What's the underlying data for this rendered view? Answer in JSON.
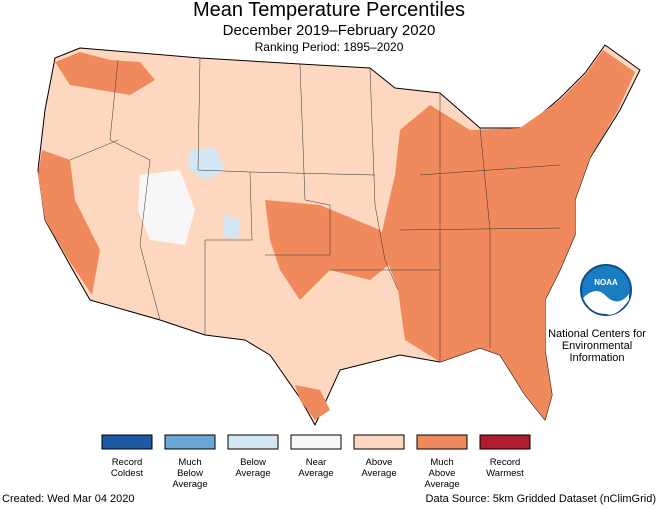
{
  "header": {
    "title": "Mean Temperature Percentiles",
    "subtitle": "December 2019–February 2020",
    "ranking_period": "Ranking Period: 1895–2020"
  },
  "legend": {
    "items": [
      {
        "label": [
          "Record",
          "Coldest"
        ],
        "color": "#1c5aa6"
      },
      {
        "label": [
          "Much",
          "Below",
          "Average"
        ],
        "color": "#6aa6d6"
      },
      {
        "label": [
          "Below",
          "Average"
        ],
        "color": "#d3e6f4"
      },
      {
        "label": [
          "Near",
          "Average"
        ],
        "color": "#f7f7f7"
      },
      {
        "label": [
          "Above",
          "Average"
        ],
        "color": "#fdd7c0"
      },
      {
        "label": [
          "Much",
          "Above",
          "Average"
        ],
        "color": "#f08a5c"
      },
      {
        "label": [
          "Record",
          "Warmest"
        ],
        "color": "#b01c2e"
      }
    ]
  },
  "logo": {
    "text": "NOAA",
    "caption": [
      "National Centers for",
      "Environmental",
      "Information"
    ]
  },
  "footer": {
    "created": "Created: Wed Mar 04 2020",
    "source": "Data Source: 5km Gridded Dataset (nClimGrid)"
  }
}
